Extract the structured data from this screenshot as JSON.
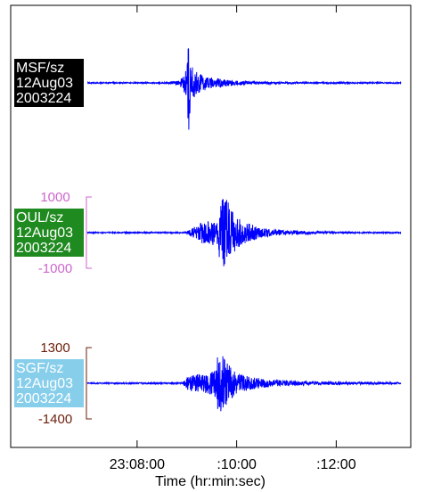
{
  "chart_data": {
    "type": "line",
    "title": "",
    "xlabel": "Time (hr:min:sec)",
    "ylabel": "",
    "x_ticks": [
      "23:08:00",
      ":10:00",
      ":12:00"
    ],
    "x_tick_minutes": [
      8,
      10,
      12
    ],
    "x_range_minutes": [
      7.0,
      13.3
    ],
    "grid": false,
    "traces": [
      {
        "label_lines": [
          "MSF/sz",
          "12Aug03",
          "2003224"
        ],
        "label_bg": "#000000",
        "label_fg": "#ffffff",
        "scale_labels": [],
        "scale_color": "",
        "envelope": [
          [
            7.0,
            0.01
          ],
          [
            8.55,
            0.01
          ],
          [
            8.85,
            0.04
          ],
          [
            9.0,
            0.25
          ],
          [
            9.03,
            0.9
          ],
          [
            9.08,
            0.35
          ],
          [
            9.2,
            0.18
          ],
          [
            9.5,
            0.09
          ],
          [
            10.0,
            0.04
          ],
          [
            10.5,
            0.02
          ],
          [
            11.5,
            0.012
          ],
          [
            13.3,
            0.01
          ]
        ]
      },
      {
        "label_lines": [
          "OUL/sz",
          "12Aug03",
          "2003224"
        ],
        "label_bg": "#1f8a1f",
        "label_fg": "#ffffff",
        "scale_labels": [
          "1000",
          "-1000"
        ],
        "scale_color": "#cc66cc",
        "envelope": [
          [
            7.0,
            0.01
          ],
          [
            8.95,
            0.01
          ],
          [
            9.1,
            0.07
          ],
          [
            9.3,
            0.18
          ],
          [
            9.6,
            0.22
          ],
          [
            9.73,
            0.75
          ],
          [
            9.9,
            0.38
          ],
          [
            10.1,
            0.2
          ],
          [
            10.5,
            0.08
          ],
          [
            11.0,
            0.035
          ],
          [
            12.0,
            0.015
          ],
          [
            13.3,
            0.01
          ]
        ]
      },
      {
        "label_lines": [
          "SGF/sz",
          "12Aug03",
          "2003224"
        ],
        "label_bg": "#87ceeb",
        "label_fg": "#ffffff",
        "scale_labels": [
          "1300",
          "-1400"
        ],
        "scale_color": "#6b1e0a",
        "envelope": [
          [
            7.0,
            0.01
          ],
          [
            8.9,
            0.012
          ],
          [
            9.05,
            0.14
          ],
          [
            9.3,
            0.16
          ],
          [
            9.55,
            0.22
          ],
          [
            9.65,
            0.6
          ],
          [
            9.8,
            0.35
          ],
          [
            10.0,
            0.17
          ],
          [
            10.5,
            0.08
          ],
          [
            11.0,
            0.045
          ],
          [
            12.0,
            0.025
          ],
          [
            13.3,
            0.015
          ]
        ]
      }
    ],
    "trace_color": "#0000ff",
    "colors": {
      "axis": "#000000",
      "trace": "#0000ff"
    }
  }
}
